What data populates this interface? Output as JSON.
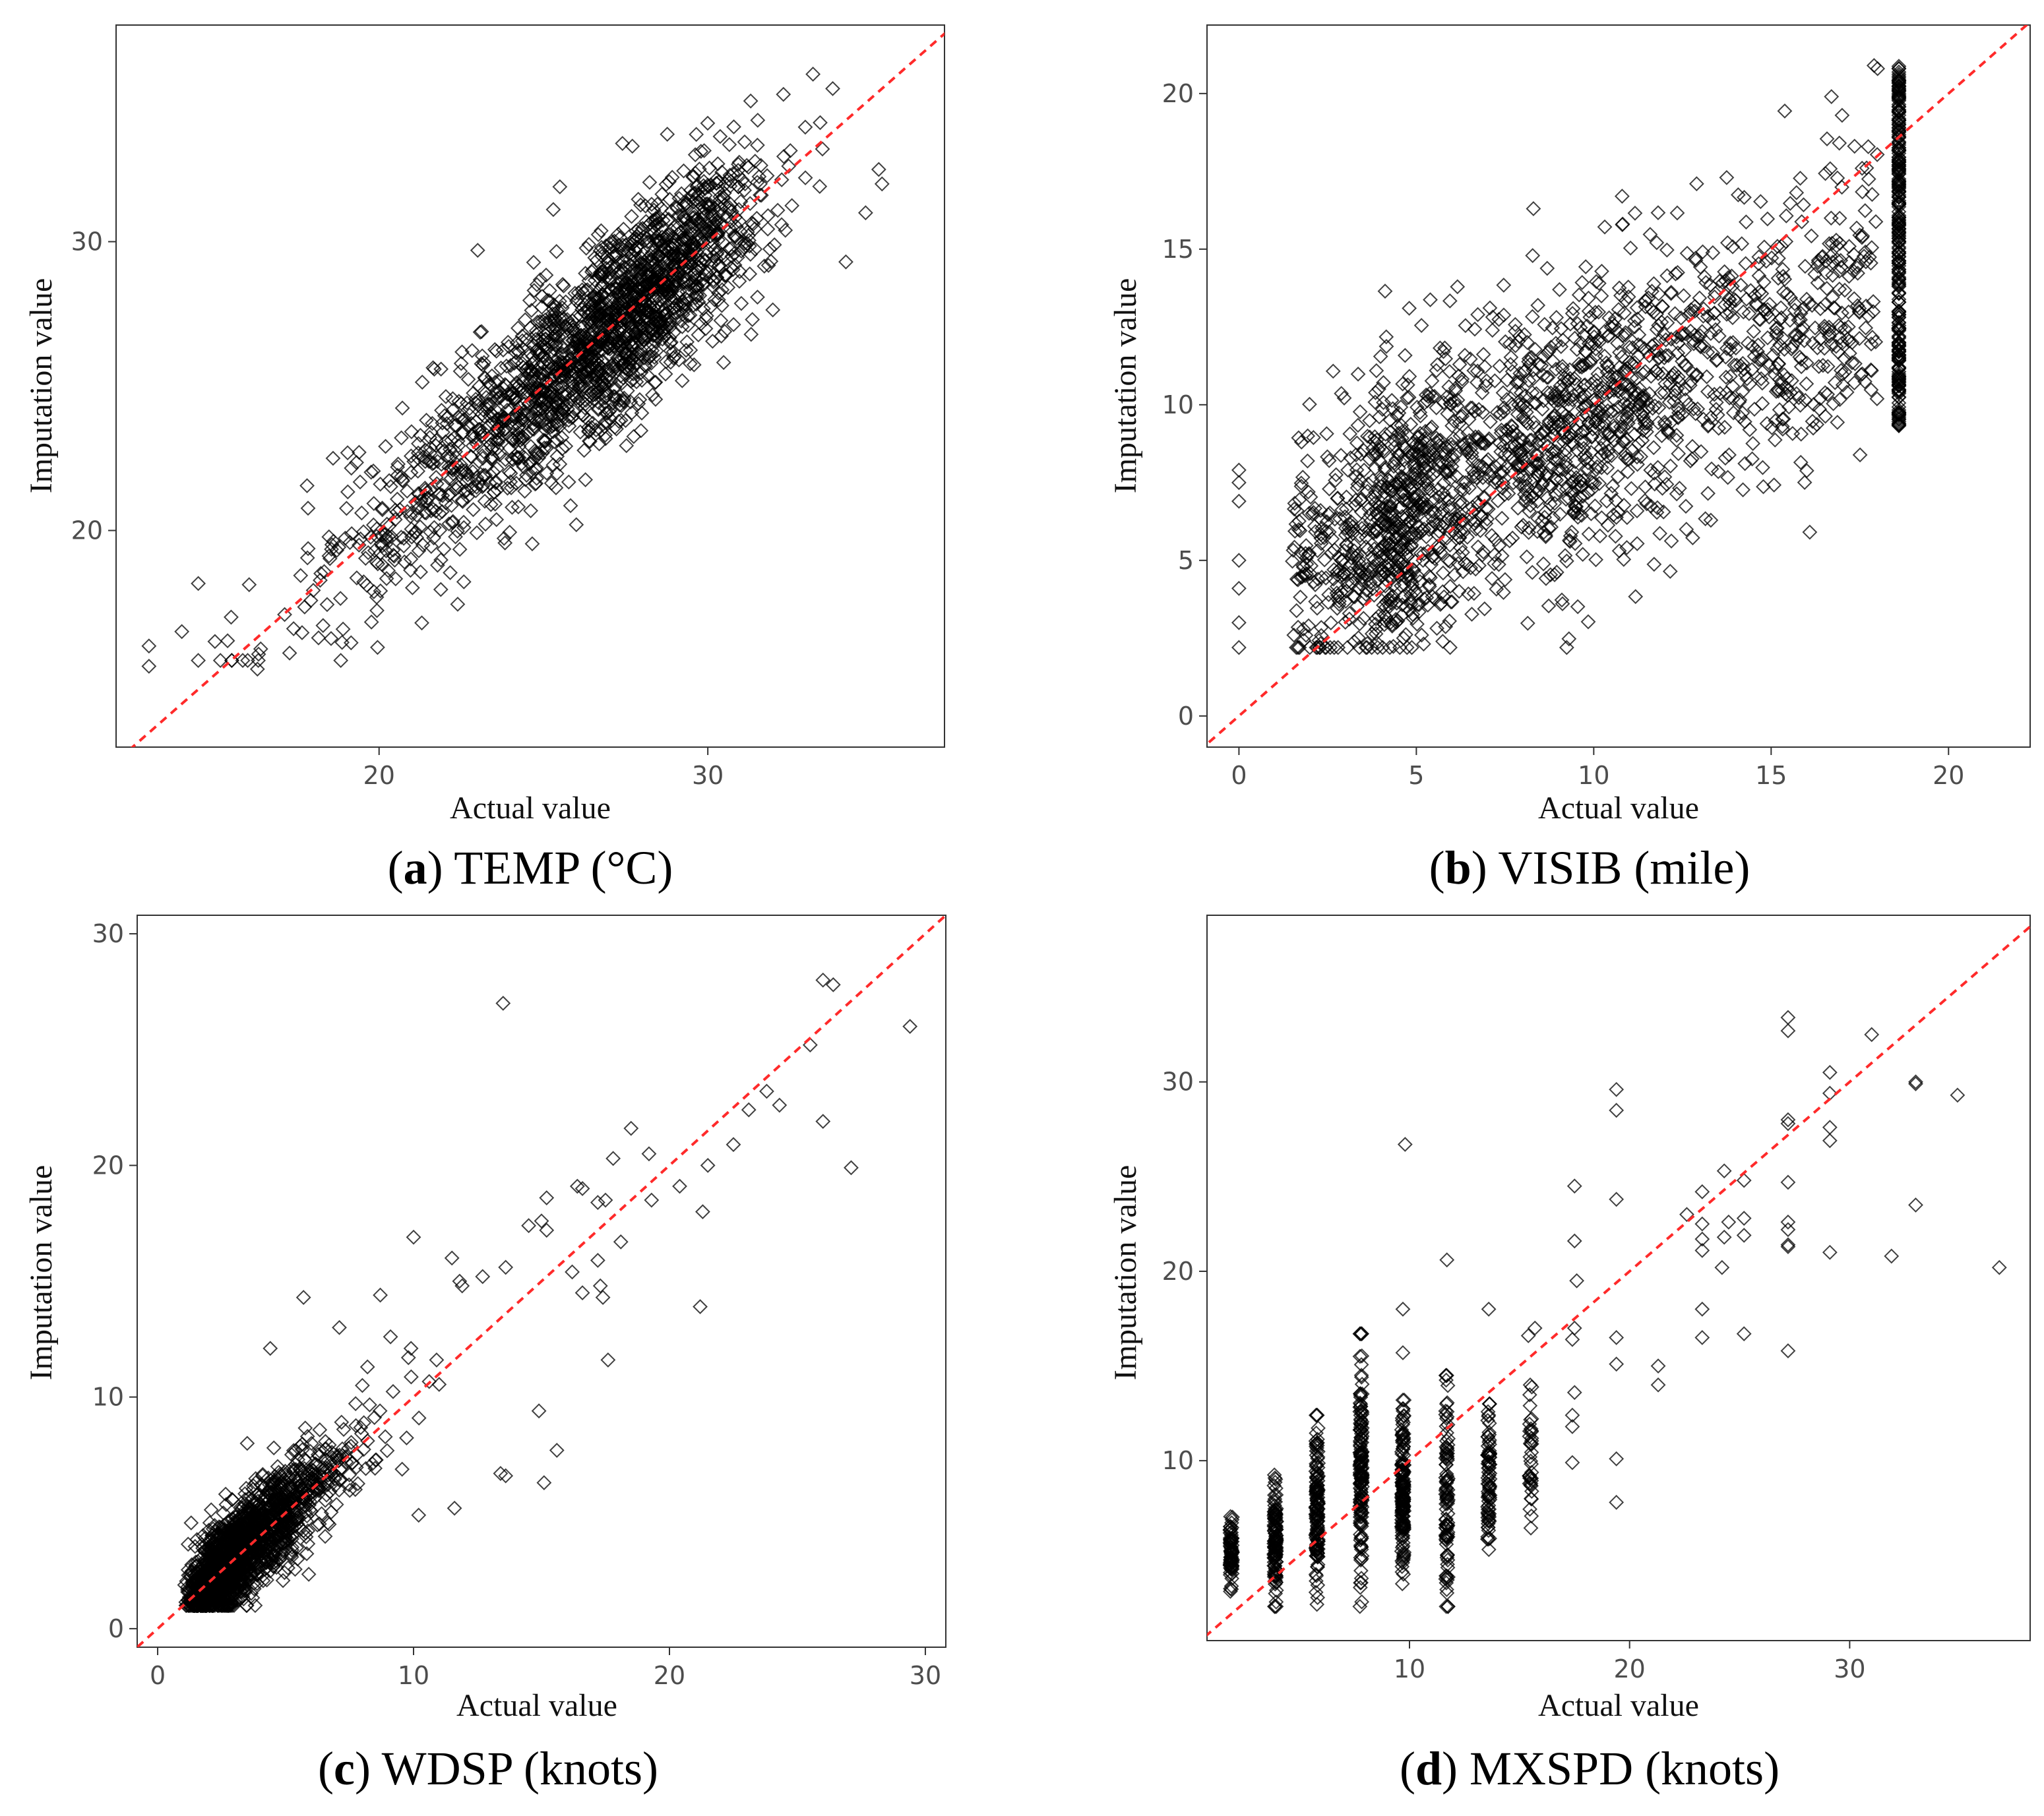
{
  "figure": {
    "ref_line_color": "#ff2a2a",
    "marker_color": "#000000",
    "marker": "open-diamond"
  },
  "chart_data": [
    {
      "id": "a",
      "type": "scatter",
      "caption_letter": "a",
      "caption_text": "TEMP (°C)",
      "xlabel": "Actual value",
      "ylabel": "Imputation value",
      "xlim": [
        12.0,
        37.2
      ],
      "ylim": [
        12.5,
        37.5
      ],
      "xticks": [
        20,
        30
      ],
      "yticks": [
        20,
        30
      ],
      "reference_line": "y = x",
      "point_gen": {
        "seed": 11,
        "n": 2100,
        "kind": "temp"
      },
      "points": [
        [
          13.0,
          16.0
        ],
        [
          13.0,
          15.3
        ],
        [
          14.0,
          16.5
        ],
        [
          15.5,
          17.0
        ],
        [
          16.3,
          15.2
        ],
        [
          16.4,
          15.9
        ],
        [
          17.4,
          16.6
        ],
        [
          21.3,
          16.8
        ],
        [
          33.8,
          35.3
        ],
        [
          33.2,
          35.8
        ],
        [
          32.3,
          35.1
        ],
        [
          35.2,
          32.5
        ],
        [
          35.3,
          32.0
        ],
        [
          34.8,
          31.0
        ],
        [
          34.2,
          29.3
        ],
        [
          26.0,
          20.2
        ],
        [
          18.6,
          22.5
        ],
        [
          23.0,
          29.7
        ],
        [
          25.5,
          31.9
        ]
      ]
    },
    {
      "id": "b",
      "type": "scatter",
      "caption_letter": "b",
      "caption_text": "VISIB (mile)",
      "xlabel": "Actual value",
      "ylabel": "Imputation value",
      "xlim": [
        -0.9,
        22.3
      ],
      "ylim": [
        -1.0,
        22.2
      ],
      "xticks": [
        0,
        5,
        10,
        15,
        20
      ],
      "yticks": [
        0,
        5,
        10,
        15,
        20
      ],
      "reference_line": "y = x",
      "point_gen": {
        "seed": 23,
        "n": 2300,
        "kind": "visib"
      },
      "points": [
        [
          0.0,
          2.2
        ],
        [
          0.0,
          3.0
        ],
        [
          0.0,
          4.1
        ],
        [
          0.0,
          5.0
        ],
        [
          0.0,
          6.9
        ],
        [
          0.0,
          7.5
        ],
        [
          0.0,
          7.9
        ],
        [
          17.0,
          19.3
        ],
        [
          16.7,
          19.9
        ],
        [
          17.9,
          20.9
        ],
        [
          18.0,
          20.8
        ],
        [
          8.3,
          16.3
        ],
        [
          10.8,
          16.7
        ],
        [
          12.9,
          17.1
        ],
        [
          4.8,
          13.1
        ]
      ]
    },
    {
      "id": "c",
      "type": "scatter",
      "caption_letter": "c",
      "caption_text": "WDSP (knots)",
      "xlabel": "Actual value",
      "ylabel": "Imputation value",
      "xlim": [
        -0.8,
        30.8
      ],
      "ylim": [
        -0.8,
        30.8
      ],
      "xticks": [
        0,
        10,
        20,
        30
      ],
      "yticks": [
        0,
        10,
        20,
        30
      ],
      "reference_line": "y = x",
      "point_gen": {
        "seed": 37,
        "n": 1800,
        "kind": "wdsp"
      },
      "points": [
        [
          13.5,
          27.0
        ],
        [
          26.0,
          28.0
        ],
        [
          26.4,
          27.8
        ],
        [
          29.4,
          26.0
        ],
        [
          25.5,
          25.2
        ],
        [
          24.3,
          22.6
        ],
        [
          23.8,
          23.2
        ],
        [
          23.1,
          22.4
        ],
        [
          26.0,
          21.9
        ],
        [
          27.1,
          19.9
        ],
        [
          22.5,
          20.9
        ],
        [
          21.5,
          20.0
        ],
        [
          21.3,
          18.0
        ],
        [
          21.2,
          13.9
        ],
        [
          20.4,
          19.1
        ],
        [
          19.2,
          20.5
        ],
        [
          19.3,
          18.5
        ],
        [
          18.1,
          16.7
        ],
        [
          17.8,
          20.3
        ],
        [
          18.5,
          21.6
        ],
        [
          16.4,
          19.1
        ],
        [
          16.6,
          19.0
        ],
        [
          17.2,
          18.4
        ],
        [
          17.5,
          18.5
        ],
        [
          17.2,
          15.9
        ],
        [
          17.4,
          14.3
        ],
        [
          17.3,
          14.8
        ],
        [
          17.6,
          11.6
        ],
        [
          16.2,
          15.4
        ],
        [
          16.6,
          14.5
        ],
        [
          15.0,
          17.6
        ],
        [
          15.2,
          18.6
        ],
        [
          15.2,
          17.2
        ],
        [
          14.5,
          17.4
        ],
        [
          13.6,
          15.6
        ],
        [
          12.7,
          15.2
        ],
        [
          11.8,
          15.0
        ],
        [
          11.9,
          14.8
        ],
        [
          11.5,
          16.0
        ],
        [
          10.0,
          16.9
        ],
        [
          10.9,
          11.6
        ],
        [
          11.6,
          5.2
        ],
        [
          14.9,
          9.4
        ],
        [
          15.6,
          7.7
        ],
        [
          15.1,
          6.3
        ],
        [
          13.6,
          6.6
        ],
        [
          13.4,
          6.7
        ],
        [
          10.2,
          4.9
        ],
        [
          9.8,
          11.7
        ],
        [
          9.9,
          12.1
        ],
        [
          9.1,
          12.6
        ],
        [
          8.7,
          14.4
        ],
        [
          8.2,
          11.3
        ],
        [
          8.0,
          10.5
        ],
        [
          7.1,
          13.0
        ],
        [
          5.7,
          14.3
        ],
        [
          4.4,
          12.1
        ],
        [
          3.5,
          8.0
        ]
      ]
    },
    {
      "id": "d",
      "type": "scatter",
      "caption_letter": "d",
      "caption_text": "MXSPD (knots)",
      "xlabel": "Actual value",
      "ylabel": "Imputation value",
      "xlim": [
        0.8,
        38.2
      ],
      "ylim": [
        0.5,
        38.8
      ],
      "xticks": [
        10,
        20,
        30
      ],
      "yticks": [
        10,
        20,
        30
      ],
      "reference_line": "y = x",
      "point_gen": {
        "seed": 53,
        "kind": "mxspd",
        "columns": [
          [
            1.9,
            3.0,
            7.3,
            80
          ],
          [
            3.9,
            2.3,
            9.4,
            120
          ],
          [
            5.8,
            2.4,
            12.4,
            140
          ],
          [
            7.8,
            2.3,
            16.7,
            160
          ],
          [
            9.7,
            3.5,
            13.2,
            160
          ],
          [
            11.7,
            2.3,
            14.5,
            100
          ],
          [
            13.6,
            5.0,
            13.0,
            80
          ],
          [
            15.5,
            6.4,
            14.0,
            40
          ]
        ]
      },
      "points": [
        [
          9.8,
          26.7
        ],
        [
          9.7,
          18.0
        ],
        [
          9.7,
          15.7
        ],
        [
          11.7,
          20.6
        ],
        [
          13.6,
          18.0
        ],
        [
          15.4,
          16.6
        ],
        [
          15.7,
          17.0
        ],
        [
          17.5,
          24.5
        ],
        [
          17.5,
          21.6
        ],
        [
          17.6,
          19.5
        ],
        [
          17.5,
          17.0
        ],
        [
          17.4,
          16.4
        ],
        [
          17.5,
          13.6
        ],
        [
          17.4,
          12.4
        ],
        [
          17.4,
          11.8
        ],
        [
          17.4,
          9.9
        ],
        [
          19.4,
          29.6
        ],
        [
          19.4,
          28.5
        ],
        [
          19.4,
          23.8
        ],
        [
          19.4,
          16.5
        ],
        [
          19.4,
          15.1
        ],
        [
          19.4,
          10.1
        ],
        [
          19.4,
          7.8
        ],
        [
          21.3,
          15.0
        ],
        [
          21.3,
          14.0
        ],
        [
          22.6,
          23.0
        ],
        [
          23.3,
          24.2
        ],
        [
          23.3,
          22.5
        ],
        [
          23.3,
          21.7
        ],
        [
          23.3,
          21.1
        ],
        [
          23.3,
          18.0
        ],
        [
          23.3,
          16.5
        ],
        [
          24.3,
          25.3
        ],
        [
          24.5,
          22.6
        ],
        [
          24.3,
          21.8
        ],
        [
          24.2,
          20.2
        ],
        [
          25.2,
          24.8
        ],
        [
          25.2,
          22.8
        ],
        [
          25.2,
          21.9
        ],
        [
          25.2,
          16.7
        ],
        [
          27.2,
          33.4
        ],
        [
          27.2,
          32.7
        ],
        [
          27.2,
          28.0
        ],
        [
          27.2,
          27.8
        ],
        [
          27.2,
          24.7
        ],
        [
          27.2,
          22.6
        ],
        [
          27.2,
          22.2
        ],
        [
          27.2,
          21.4
        ],
        [
          27.2,
          21.3
        ],
        [
          27.2,
          15.8
        ],
        [
          29.1,
          30.5
        ],
        [
          29.1,
          29.4
        ],
        [
          29.1,
          27.6
        ],
        [
          29.1,
          26.9
        ],
        [
          29.1,
          21.0
        ],
        [
          31.0,
          32.5
        ],
        [
          31.9,
          20.8
        ],
        [
          33.0,
          30.0
        ],
        [
          33.0,
          29.9
        ],
        [
          33.0,
          23.5
        ],
        [
          34.9,
          29.3
        ],
        [
          36.8,
          20.2
        ]
      ]
    }
  ]
}
